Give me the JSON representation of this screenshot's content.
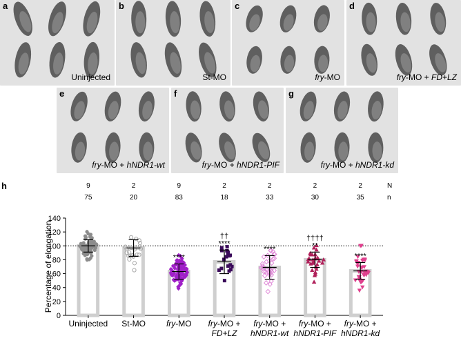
{
  "panels": [
    {
      "letter": "a",
      "label": "Uninjected"
    },
    {
      "letter": "b",
      "label": "St-MO"
    },
    {
      "letter": "c",
      "label_it": "fry",
      "label_rest": "-MO"
    },
    {
      "letter": "d",
      "label_it": "fry",
      "label_rest": "-MO + ",
      "label_it2": "FD+LZ"
    },
    {
      "letter": "e",
      "label_it": "fry",
      "label_rest": "-MO + ",
      "label_it2": "hNDR1-wt"
    },
    {
      "letter": "f",
      "label_it": "fry",
      "label_rest": "-MO + ",
      "label_it2": "hNDR1-PIF"
    },
    {
      "letter": "g",
      "label_it": "fry",
      "label_rest": "-MO + ",
      "label_it2": "hNDR1-kd"
    }
  ],
  "chart_label": "h",
  "colors": {
    "panel_bg": "#e2e2e2",
    "embryo": "#3a3a3a",
    "bar_fill": "#ffffff",
    "bar_edge": "#cfcfcf",
    "ref_line": "#000000",
    "uninjected": "#8c8c8c",
    "st_mo": "#a8a8a8",
    "fry_mo": "#a020c8",
    "fd_lz": "#3a0a5a",
    "wt": "#e08ad8",
    "pif": "#b0205a",
    "kd": "#e0408e"
  },
  "chart_data": {
    "type": "bar",
    "title": "",
    "xlabel": "",
    "ylabel": "Percentage of elongation",
    "ylim": [
      0,
      140
    ],
    "yticks": [
      0,
      20,
      40,
      60,
      80,
      100,
      120,
      140
    ],
    "ref_line": 100,
    "row_N_label": "N",
    "row_n_label": "n",
    "categories": [
      {
        "lines": [
          {
            "p": [
              {
                "t": "Uninjected",
                "i": false
              }
            ]
          }
        ]
      },
      {
        "lines": [
          {
            "p": [
              {
                "t": "St-MO",
                "i": false
              }
            ]
          }
        ]
      },
      {
        "lines": [
          {
            "p": [
              {
                "t": "fry",
                "i": true
              },
              {
                "t": "-MO",
                "i": false
              }
            ]
          }
        ]
      },
      {
        "lines": [
          {
            "p": [
              {
                "t": "fry",
                "i": true
              },
              {
                "t": "-MO +",
                "i": false
              }
            ]
          },
          {
            "p": [
              {
                "t": "FD+LZ",
                "i": true
              }
            ]
          }
        ]
      },
      {
        "lines": [
          {
            "p": [
              {
                "t": "fry",
                "i": true
              },
              {
                "t": "-MO +",
                "i": false
              }
            ]
          },
          {
            "p": [
              {
                "t": "hNDR1-wt",
                "i": true
              }
            ]
          }
        ]
      },
      {
        "lines": [
          {
            "p": [
              {
                "t": "fry",
                "i": true
              },
              {
                "t": "-MO +",
                "i": false
              }
            ]
          },
          {
            "p": [
              {
                "t": "hNDR1-PIF",
                "i": true
              }
            ]
          }
        ]
      },
      {
        "lines": [
          {
            "p": [
              {
                "t": "fry",
                "i": true
              },
              {
                "t": "-MO +",
                "i": false
              }
            ]
          },
          {
            "p": [
              {
                "t": "hNDR1-kd",
                "i": true
              }
            ]
          }
        ]
      }
    ],
    "N": [
      "9",
      "2",
      "9",
      "2",
      "2",
      "2",
      "2"
    ],
    "n": [
      "75",
      "20",
      "83",
      "18",
      "33",
      "30",
      "35"
    ],
    "means": [
      100,
      97,
      63,
      77,
      69,
      80,
      64
    ],
    "sd": [
      9,
      12,
      11,
      17,
      17,
      11,
      12
    ],
    "marker": [
      "circle",
      "circle-open",
      "diamond",
      "square",
      "diamond-open",
      "triangle",
      "triangle-down"
    ],
    "significance": [
      [],
      [],
      [
        "****"
      ],
      [
        "††",
        "****"
      ],
      [
        "****"
      ],
      [
        "††††",
        "**"
      ],
      [
        "****"
      ]
    ]
  }
}
